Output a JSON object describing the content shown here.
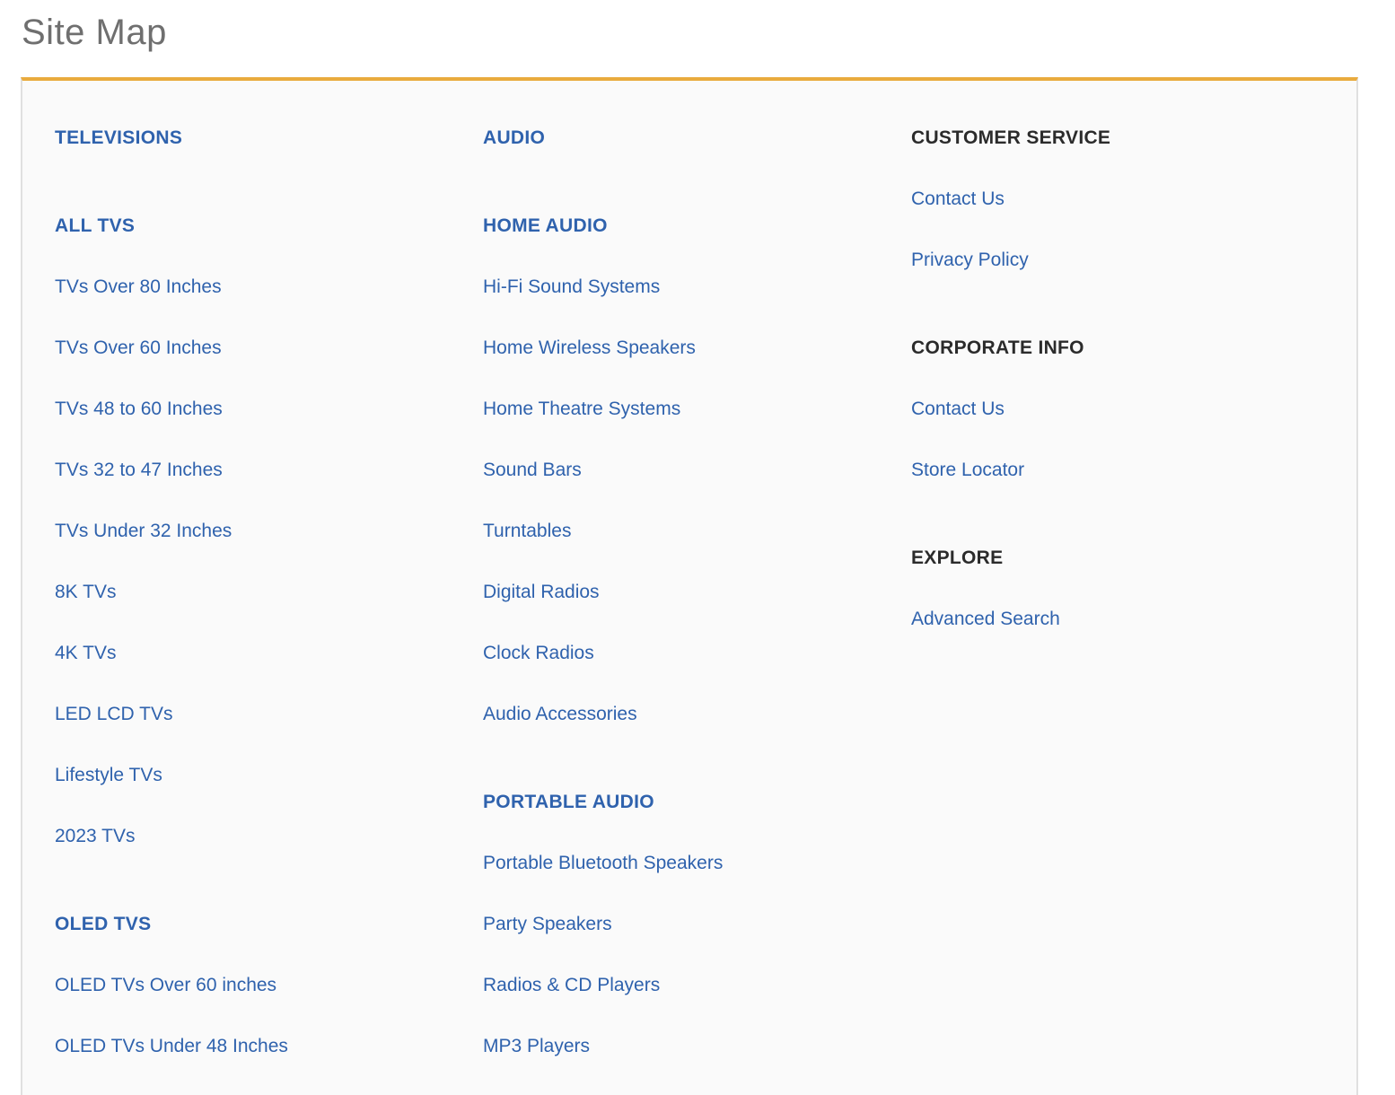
{
  "title": "Site Map",
  "colors": {
    "accent": "#e9ab3e",
    "link": "#2f62ad",
    "heading_dark": "#2b2b2b"
  },
  "columns": [
    {
      "sections": [
        {
          "heading": "TELEVISIONS",
          "links": []
        },
        {
          "heading": "ALL TVS",
          "links": [
            "TVs Over 80 Inches",
            "TVs Over 60 Inches",
            "TVs 48 to 60 Inches",
            "TVs 32 to 47 Inches",
            "TVs Under 32 Inches",
            "8K TVs",
            "4K TVs",
            "LED LCD TVs",
            "Lifestyle TVs",
            "2023 TVs"
          ]
        },
        {
          "heading": "OLED TVS",
          "links": [
            "OLED TVs Over 60 inches",
            "OLED TVs Under 48 Inches"
          ]
        }
      ]
    },
    {
      "sections": [
        {
          "heading": "AUDIO",
          "links": []
        },
        {
          "heading": "HOME AUDIO",
          "links": [
            "Hi-Fi Sound Systems",
            "Home Wireless Speakers",
            "Home Theatre Systems",
            "Sound Bars",
            "Turntables",
            "Digital Radios",
            "Clock Radios",
            "Audio Accessories"
          ]
        },
        {
          "heading": "PORTABLE AUDIO",
          "links": [
            "Portable Bluetooth Speakers",
            "Party Speakers",
            "Radios & CD Players",
            "MP3 Players"
          ]
        }
      ]
    },
    {
      "sections": [
        {
          "heading": "CUSTOMER SERVICE",
          "links": [
            "Contact Us",
            "Privacy Policy"
          ]
        },
        {
          "heading": "CORPORATE INFO",
          "links": [
            "Contact Us",
            "Store Locator"
          ]
        },
        {
          "heading": "EXPLORE",
          "links": [
            "Advanced Search"
          ]
        }
      ]
    }
  ]
}
